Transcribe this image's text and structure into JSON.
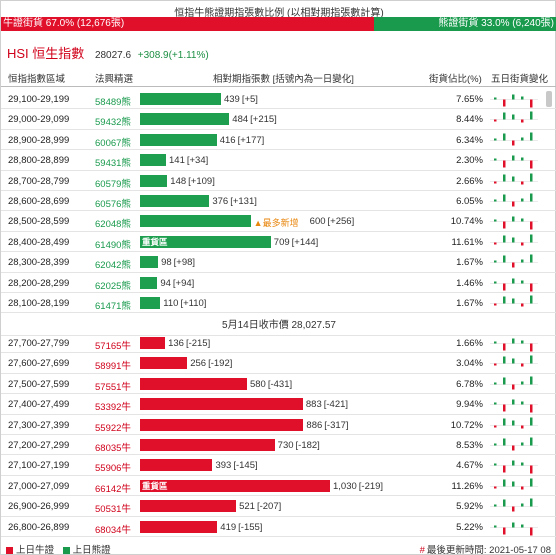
{
  "ratio": {
    "title": "恒指牛熊證期指張數比例 (以相對期指張數計算)",
    "bull_label": "牛證街貨 67.0% (12,676張)",
    "bear_label": "熊證街貨 33.0% (6,240張)",
    "bull_pct": 67.0,
    "colors": {
      "bull": "#e0102b",
      "bear": "#199a4d"
    }
  },
  "index": {
    "name": "HSI 恒生指數",
    "value": "28027.6",
    "change": "+308.9(+1.11%)"
  },
  "headers": {
    "range": "恒指指數區域",
    "code": "法興精選",
    "contracts": "相對期指張數 [括號內為一日變化]",
    "share": "街貨佔比(%)",
    "five_day": "五日街貨變化"
  },
  "bear_rows": [
    {
      "range": "29,100-29,199",
      "code": "58489熊",
      "qty": "439",
      "delta": "[+5]",
      "value": 439,
      "pct": "7.65%"
    },
    {
      "range": "29,000-29,099",
      "code": "59432熊",
      "qty": "484",
      "delta": "[+215]",
      "value": 484,
      "pct": "8.44%"
    },
    {
      "range": "28,900-28,999",
      "code": "60067熊",
      "qty": "416",
      "delta": "[+177]",
      "value": 416,
      "pct": "6.34%"
    },
    {
      "range": "28,800-28,899",
      "code": "59431熊",
      "qty": "141",
      "delta": "[+34]",
      "value": 141,
      "pct": "2.30%"
    },
    {
      "range": "28,700-28,799",
      "code": "60579熊",
      "qty": "148",
      "delta": "[+109]",
      "value": 148,
      "pct": "2.66%"
    },
    {
      "range": "28,600-28,699",
      "code": "60576熊",
      "qty": "376",
      "delta": "[+131]",
      "value": 376,
      "pct": "6.05%"
    },
    {
      "range": "28,500-28,599",
      "code": "62048熊",
      "qty": "600",
      "delta": "[+256]",
      "value": 600,
      "pct": "10.74%",
      "note": "▲最多新增"
    },
    {
      "range": "28,400-28,499",
      "code": "61490熊",
      "qty": "709",
      "delta": "[+144]",
      "value": 709,
      "pct": "11.61%",
      "tag": "重貨區"
    },
    {
      "range": "28,300-28,399",
      "code": "62042熊",
      "qty": "98",
      "delta": "[+98]",
      "value": 98,
      "pct": "1.67%"
    },
    {
      "range": "28,200-28,299",
      "code": "62025熊",
      "qty": "94",
      "delta": "[+94]",
      "value": 94,
      "pct": "1.46%"
    },
    {
      "range": "28,100-28,199",
      "code": "61471熊",
      "qty": "110",
      "delta": "[+110]",
      "value": 110,
      "pct": "1.67%"
    }
  ],
  "close_label": "5月14日收市價 28,027.57",
  "bull_rows": [
    {
      "range": "27,700-27,799",
      "code": "57165牛",
      "qty": "136",
      "delta": "[-215]",
      "value": 136,
      "pct": "1.66%"
    },
    {
      "range": "27,600-27,699",
      "code": "58991牛",
      "qty": "256",
      "delta": "[-192]",
      "value": 256,
      "pct": "3.04%"
    },
    {
      "range": "27,500-27,599",
      "code": "57551牛",
      "qty": "580",
      "delta": "[-431]",
      "value": 580,
      "pct": "6.78%"
    },
    {
      "range": "27,400-27,499",
      "code": "53392牛",
      "qty": "883",
      "delta": "[-421]",
      "value": 883,
      "pct": "9.94%"
    },
    {
      "range": "27,300-27,399",
      "code": "55922牛",
      "qty": "886",
      "delta": "[-317]",
      "value": 886,
      "pct": "10.72%"
    },
    {
      "range": "27,200-27,299",
      "code": "68035牛",
      "qty": "730",
      "delta": "[-182]",
      "value": 730,
      "pct": "8.53%"
    },
    {
      "range": "27,100-27,199",
      "code": "55906牛",
      "qty": "393",
      "delta": "[-145]",
      "value": 393,
      "pct": "4.67%"
    },
    {
      "range": "27,000-27,099",
      "code": "66142牛",
      "qty": "1,030",
      "delta": "[-219]",
      "value": 1030,
      "pct": "11.26%",
      "tag": "重貨區"
    },
    {
      "range": "26,900-26,999",
      "code": "50531牛",
      "qty": "521",
      "delta": "[-207]",
      "value": 521,
      "pct": "5.92%"
    },
    {
      "range": "26,800-26,899",
      "code": "68034牛",
      "qty": "419",
      "delta": "[-155]",
      "value": 419,
      "pct": "5.22%"
    }
  ],
  "legend": {
    "bull": "上日牛證",
    "bear": "上日熊證"
  },
  "update_mark": "#",
  "update_text": "最後更新時間: 2021-05-17 08"
}
